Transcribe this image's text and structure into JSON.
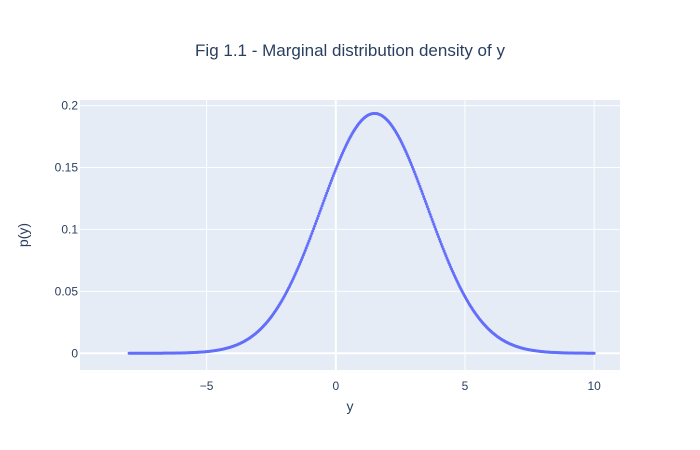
{
  "chart_data": {
    "type": "scatter",
    "title": "Fig 1.1 - Marginal distribution density of y",
    "xlabel": "y",
    "ylabel": "p(y)",
    "x_range": [
      -8,
      10
    ],
    "xlim": [
      -9.9,
      11.0
    ],
    "ylim": [
      -0.0135,
      0.2045
    ],
    "x_ticks": [
      -5,
      0,
      5,
      10
    ],
    "x_tick_labels": [
      "−5",
      "0",
      "5",
      "10"
    ],
    "y_ticks": [
      0,
      0.05,
      0.1,
      0.15,
      0.2
    ],
    "y_tick_labels": [
      "0",
      "0.05",
      "0.1",
      "0.15",
      "0.2"
    ],
    "grid": true,
    "legend": "none",
    "series": [
      {
        "mode": "markers",
        "color": "#636efa",
        "distribution": "normal",
        "mean": 1.5,
        "std": 2.06,
        "n_points": 500,
        "peak_value": 0.194,
        "x": [
          -8,
          -7,
          -6,
          -5,
          -4,
          -3,
          -2,
          -1,
          0,
          1,
          1.5,
          2,
          3,
          4,
          5,
          6,
          7,
          8,
          9,
          10
        ],
        "y": [
          0,
          0.0001,
          0.0005,
          0.0013,
          0.0052,
          0.0178,
          0.0463,
          0.0925,
          0.1492,
          0.188,
          0.1937,
          0.188,
          0.1492,
          0.0925,
          0.0463,
          0.0178,
          0.0052,
          0.0013,
          0.0002,
          0
        ]
      }
    ]
  },
  "colors": {
    "plot_bg": "#e5ecf6",
    "paper_bg": "#ffffff",
    "text": "#2a3f5f",
    "marker": "#636efa"
  }
}
